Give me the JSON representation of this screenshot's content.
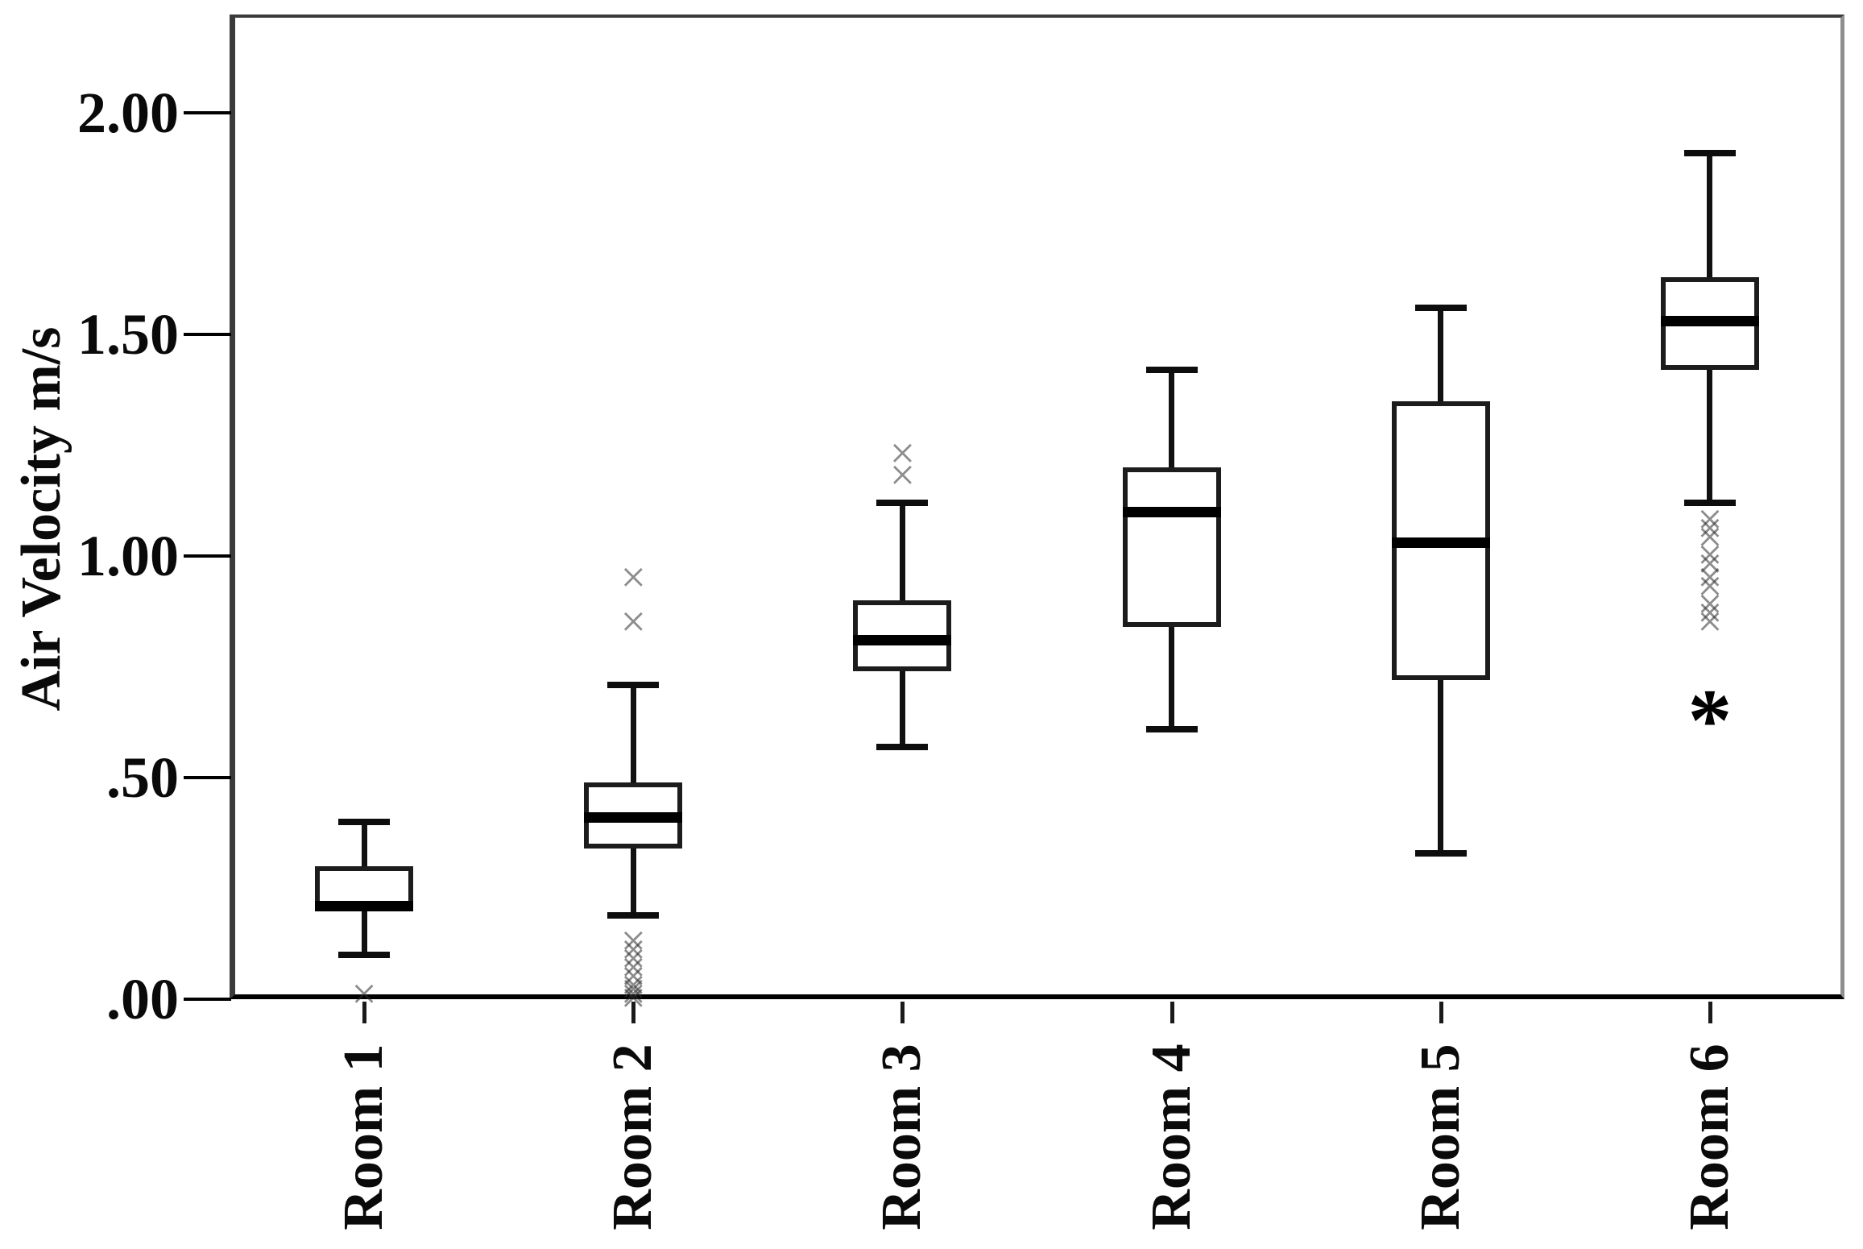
{
  "chart_data": {
    "type": "boxplot",
    "title": "",
    "xlabel": "",
    "ylabel": "Air Velocity m/s",
    "ylim": [
      0,
      2.22
    ],
    "grid": false,
    "legend": "none",
    "y_ticks": [
      {
        "label": "2.00",
        "value": 2.0
      },
      {
        "label": "1.50",
        "value": 1.5
      },
      {
        "label": "1.00",
        "value": 1.0
      },
      {
        "label": ".50",
        "value": 0.5
      },
      {
        "label": ".00",
        "value": 0.0
      }
    ],
    "categories": [
      "Room 1",
      "Room 2",
      "Room 3",
      "Room 4",
      "Room 5",
      "Room 6"
    ],
    "series": [
      {
        "category": "Room 1",
        "whisker_low": 0.1,
        "q1": 0.2,
        "median": 0.21,
        "q3": 0.3,
        "whisker_high": 0.4,
        "outliers": [
          0.01
        ],
        "extremes": []
      },
      {
        "category": "Room 2",
        "whisker_low": 0.19,
        "q1": 0.34,
        "median": 0.41,
        "q3": 0.49,
        "whisker_high": 0.71,
        "outliers": [
          0.95,
          0.85,
          0.13,
          0.11,
          0.09,
          0.07,
          0.05,
          0.03,
          0.02,
          0.01,
          0.0
        ],
        "extremes": []
      },
      {
        "category": "Room 3",
        "whisker_low": 0.57,
        "q1": 0.74,
        "median": 0.81,
        "q3": 0.9,
        "whisker_high": 1.12,
        "outliers": [
          1.23,
          1.18
        ],
        "extremes": []
      },
      {
        "category": "Room 4",
        "whisker_low": 0.61,
        "q1": 0.84,
        "median": 1.1,
        "q3": 1.2,
        "whisker_high": 1.42,
        "outliers": [],
        "extremes": []
      },
      {
        "category": "Room 5",
        "whisker_low": 0.33,
        "q1": 0.72,
        "median": 1.03,
        "q3": 1.35,
        "whisker_high": 1.56,
        "outliers": [],
        "extremes": []
      },
      {
        "category": "Room 6",
        "whisker_low": 1.12,
        "q1": 1.42,
        "median": 1.53,
        "q3": 1.63,
        "whisker_high": 1.91,
        "outliers": [
          1.08,
          1.06,
          1.04,
          1.0,
          0.98,
          0.95,
          0.93,
          0.89,
          0.87,
          0.85
        ],
        "extremes": [
          0.66
        ]
      }
    ],
    "outlier_marker": "×",
    "extreme_marker": "*",
    "colors": {
      "background": "#ffffff",
      "box_border": "#1c1c1c",
      "box_fill": "#ffffff",
      "median": "#000000",
      "whisker": "#111111",
      "outlier": "#6e6e6e",
      "extreme": "#000000",
      "frame_dark": "#3b3b3b",
      "frame_light": "#8f8f8f",
      "axis_bottom": "#000000"
    }
  }
}
